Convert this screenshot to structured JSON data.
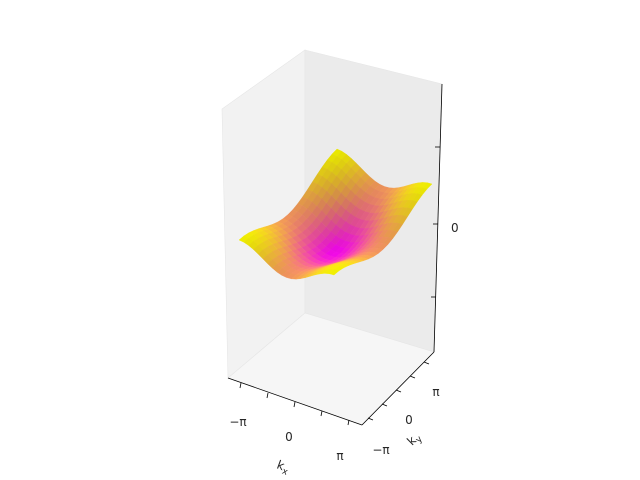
{
  "chart_data": {
    "type": "surface3d",
    "title": "",
    "xlabel": "k_x",
    "ylabel": "k_y",
    "zlabel": "",
    "x_ticks": [
      "−π",
      "0",
      "π"
    ],
    "y_ticks": [
      "−π",
      "0",
      "π"
    ],
    "z_ticks": [
      "0"
    ],
    "xlim": [
      -3.1416,
      3.1416
    ],
    "ylim": [
      -3.1416,
      3.1416
    ],
    "colormap": "spring",
    "colors": {
      "low": "#ff00ff",
      "high": "#ffff00",
      "pane_left": "#f2f2f2",
      "pane_right": "#eaeaea",
      "pane_floor": "#f5f5f5"
    },
    "surface": {
      "description_formula": "z = -cos(kx) - cos(ky)",
      "grid_samples": 21
    }
  }
}
